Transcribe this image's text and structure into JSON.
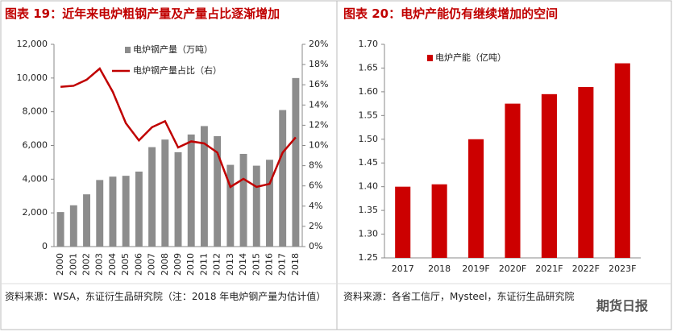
{
  "chart_data": [
    {
      "type": "bar",
      "title": "图表 19：近年来电炉粗钢产量及产量占比逐渐增加",
      "categories": [
        "2000",
        "2001",
        "2002",
        "2003",
        "2004",
        "2005",
        "2006",
        "2007",
        "2008",
        "2009",
        "2010",
        "2011",
        "2012",
        "2013",
        "2014",
        "2015",
        "2016",
        "2017",
        "2018"
      ],
      "series": [
        {
          "name": "电炉钢产量（万吨）",
          "type": "bar",
          "color": "#8c8c8c",
          "values": [
            2050,
            2450,
            3100,
            3950,
            4150,
            4200,
            4450,
            5900,
            6350,
            5600,
            6650,
            7150,
            6550,
            4850,
            5500,
            4800,
            5150,
            8100,
            10000
          ]
        },
        {
          "name": "电炉钢产量占比（右）",
          "type": "line",
          "axis": "y2",
          "color": "#c00000",
          "values": [
            15.8,
            15.9,
            16.5,
            17.6,
            15.3,
            12.2,
            10.5,
            11.8,
            12.4,
            9.8,
            10.4,
            10.2,
            9.3,
            5.9,
            6.7,
            5.9,
            6.2,
            9.3,
            10.8
          ]
        }
      ],
      "ylim": [
        0,
        12000
      ],
      "yticks": [
        0,
        {
          "value": 2000,
          "label": "2,000"
        },
        {
          "value": 4000,
          "label": "4,000"
        },
        {
          "value": 6000,
          "label": "6,000"
        },
        {
          "value": 8000,
          "label": "8,000"
        },
        {
          "value": 10000,
          "label": "10,000"
        },
        {
          "value": 12000,
          "label": "12,000"
        }
      ],
      "y2lim": [
        0,
        20
      ],
      "y2ticks": [
        {
          "value": 0,
          "label": "0%"
        },
        {
          "value": 2,
          "label": "2%"
        },
        {
          "value": 4,
          "label": "4%"
        },
        {
          "value": 6,
          "label": "6%"
        },
        {
          "value": 8,
          "label": "8%"
        },
        {
          "value": 10,
          "label": "10%"
        },
        {
          "value": 12,
          "label": "12%"
        },
        {
          "value": 14,
          "label": "14%"
        },
        {
          "value": 16,
          "label": "16%"
        },
        {
          "value": 18,
          "label": "18%"
        },
        {
          "value": 20,
          "label": "20%"
        }
      ],
      "source": "资料来源：WSA，东证衍生品研究院（注：2018 年电炉钢产量为估计值）"
    },
    {
      "type": "bar",
      "title": "图表 20：电炉产能仍有继续增加的空间",
      "categories": [
        "2017",
        "2018",
        "2019F",
        "2020F",
        "2021F",
        "2022F",
        "2023F"
      ],
      "series": [
        {
          "name": "电炉产能（亿吨）",
          "type": "bar",
          "color": "#cc0000",
          "values": [
            1.4,
            1.405,
            1.5,
            1.575,
            1.595,
            1.61,
            1.66
          ]
        }
      ],
      "ylim": [
        1.25,
        1.7
      ],
      "yticks": [
        1.25,
        {
          "value": 1.3,
          "label": "1.30"
        },
        1.35,
        {
          "value": 1.4,
          "label": "1.40"
        },
        1.45,
        {
          "value": 1.5,
          "label": "1.50"
        },
        1.55,
        {
          "value": 1.6,
          "label": "1.60"
        },
        1.65,
        {
          "value": 1.7,
          "label": "1.70"
        }
      ],
      "source": "资料来源：各省工信厅，Mysteel，东证衍生品研究院"
    }
  ],
  "watermark": "期货日报"
}
